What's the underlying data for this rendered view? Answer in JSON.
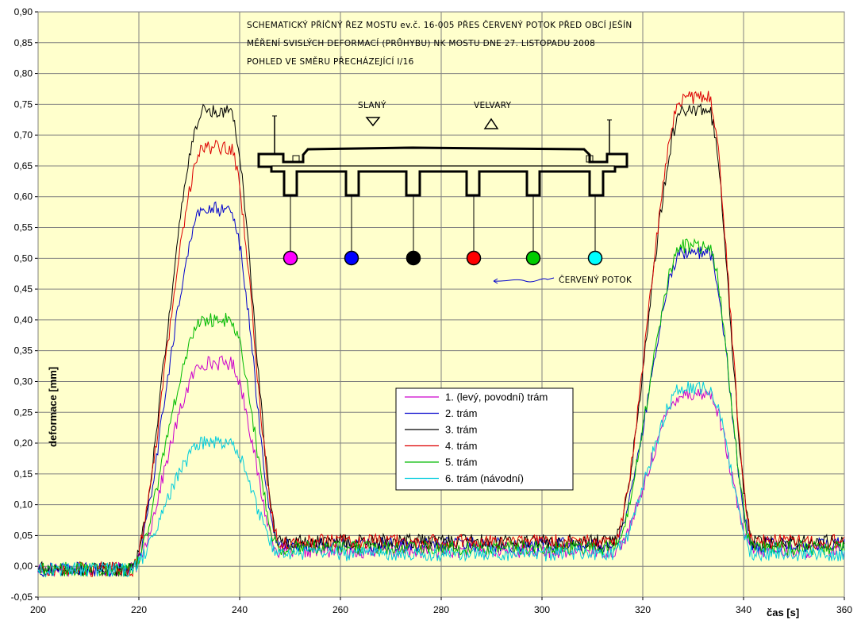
{
  "chart_data": {
    "type": "line",
    "xlabel": "čas [s]",
    "ylabel": "deformace [mm]",
    "xlim": [
      200,
      360
    ],
    "ylim": [
      -0.05,
      0.9
    ],
    "x_ticks": [
      "200",
      "220",
      "240",
      "260",
      "280",
      "300",
      "320",
      "340",
      "360"
    ],
    "y_ticks": [
      "-0,05",
      "0,00",
      "0,05",
      "0,10",
      "0,15",
      "0,20",
      "0,25",
      "0,30",
      "0,35",
      "0,40",
      "0,45",
      "0,50",
      "0,55",
      "0,60",
      "0,65",
      "0,70",
      "0,75",
      "0,80",
      "0,85",
      "0,90"
    ],
    "grid": true,
    "background": "#FFFFCC",
    "legend_position": "bottom-center",
    "series": [
      {
        "name": "1. (levý, povodní) trám",
        "color": "#CC00CC",
        "baseline": 0.025,
        "peaks": [
          0.33,
          0.28
        ],
        "noise": 0.012
      },
      {
        "name": "2. trám",
        "color": "#0000CC",
        "baseline": 0.035,
        "peaks": [
          0.58,
          0.51
        ],
        "noise": 0.012
      },
      {
        "name": "3. trám",
        "color": "#000000",
        "baseline": 0.04,
        "peaks": [
          0.74,
          0.74
        ],
        "noise": 0.012
      },
      {
        "name": "4. trám",
        "color": "#DD0000",
        "baseline": 0.04,
        "peaks": [
          0.68,
          0.76
        ],
        "noise": 0.012
      },
      {
        "name": "5. trám",
        "color": "#00BB00",
        "baseline": 0.03,
        "peaks": [
          0.4,
          0.52
        ],
        "noise": 0.012
      },
      {
        "name": "6. trám (návodní)",
        "color": "#00CCDD",
        "baseline": 0.02,
        "peaks": [
          0.2,
          0.29
        ],
        "noise": 0.012
      }
    ],
    "annotations": {
      "title_lines": [
        "SCHEMATICKÝ PŘÍČNÝ ŘEZ MOSTU ev.č. 16-005 PŘES ČERVENÝ POTOK PŘED OBCÍ JEŠÍN",
        "MĚŘENÍ SVISLÝCH DEFORMACÍ (PRŮHYBU) NK MOSTU DNE 27. LISTOPADU 2008",
        "POHLED VE SMĚRU PŘECHÁZEJÍCÍ I/16"
      ],
      "direction_left": "SLANÝ",
      "direction_right": "VELVARY",
      "stream_label": "ČERVENÝ POTOK",
      "sensor_colors": [
        "#FF00FF",
        "#0000FF",
        "#000000",
        "#FF0000",
        "#00CC00",
        "#00FFFF"
      ]
    }
  }
}
